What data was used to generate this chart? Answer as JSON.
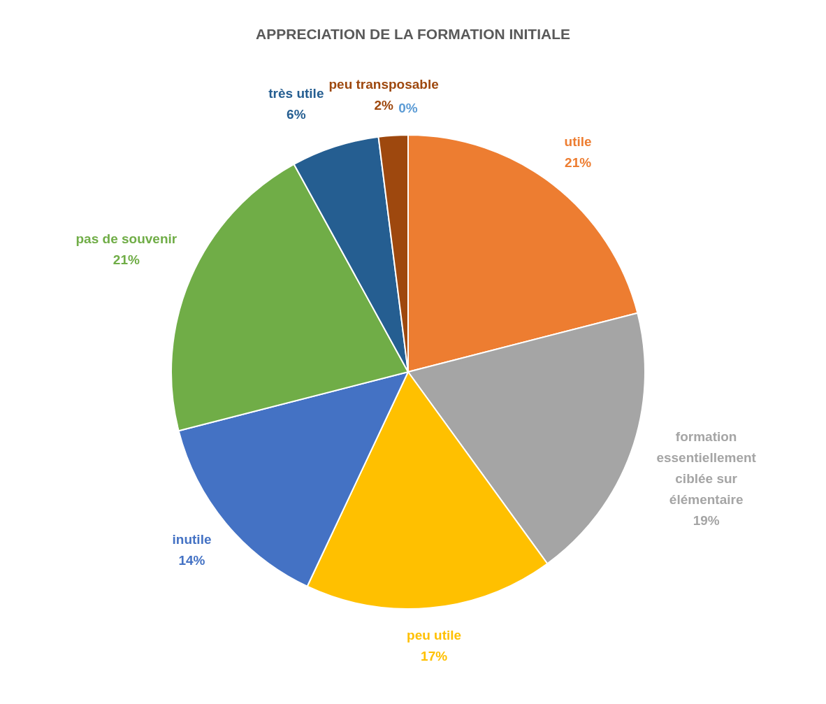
{
  "chart_data": {
    "type": "pie",
    "title": "APPRECIATION DE LA FORMATION INITIALE",
    "categories": [
      "utile",
      "formation essentiellement ciblée sur élémentaire",
      "peu utile",
      "inutile",
      "pas de souvenir",
      "très utile",
      "peu transposable",
      null
    ],
    "values": [
      21,
      19,
      17,
      14,
      21,
      6,
      2,
      0
    ],
    "colors": [
      "#ed7d31",
      "#a5a5a5",
      "#ffc000",
      "#4472c4",
      "#70ad47",
      "#255e91",
      "#9e480e",
      "#5b9bd5"
    ],
    "value_labels": [
      "21%",
      "19%",
      "17%",
      "14%",
      "21%",
      "6%",
      "2%",
      "0%"
    ]
  }
}
